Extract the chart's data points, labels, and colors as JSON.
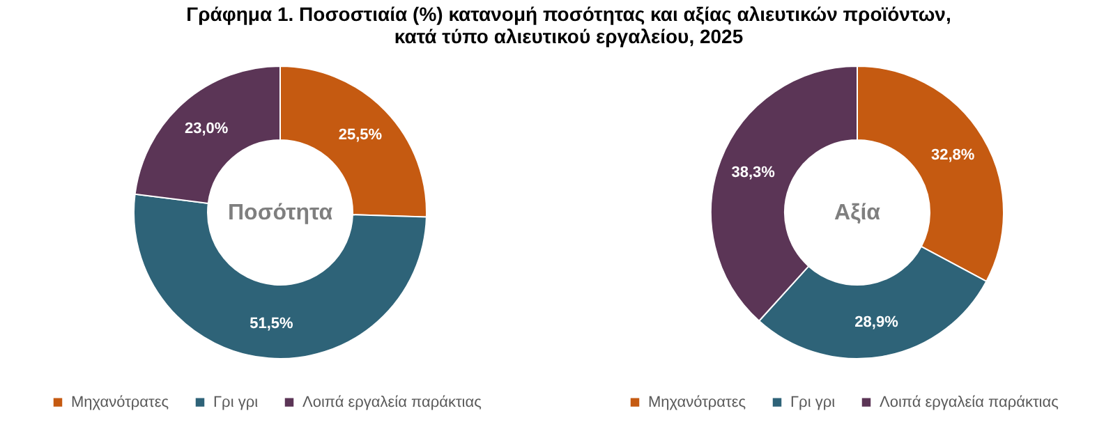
{
  "chart_data": [
    {
      "type": "donut",
      "title": "Γράφημα 1. Ποσοστιαία (%) κατανομή ποσότητας και αξίας αλιευτικών προϊόντων, κατά τύπο αλιευτικού εργαλείου, 2025",
      "categories": [
        "Μηχανότρατες",
        "Γρι γρι",
        "Λοιπά εργαλεία παράκτιας"
      ],
      "values": [
        25.5,
        51.5,
        23.0
      ],
      "value_labels": [
        "25,5%",
        "51,5%",
        "23,0%"
      ],
      "colors": [
        "#c55a11",
        "#2e6378",
        "#5b3556"
      ],
      "annotations": [
        "Ποσότητα"
      ],
      "legend": "bottom"
    },
    {
      "type": "donut",
      "categories": [
        "Μηχανότρατες",
        "Γρι γρι",
        "Λοιπά εργαλεία παράκτιας"
      ],
      "values": [
        32.8,
        28.9,
        38.3
      ],
      "value_labels": [
        "32,8%",
        "28,9%",
        "38,3%"
      ],
      "colors": [
        "#c55a11",
        "#2e6378",
        "#5b3556"
      ],
      "annotations": [
        "Αξία"
      ],
      "legend": "bottom"
    }
  ]
}
